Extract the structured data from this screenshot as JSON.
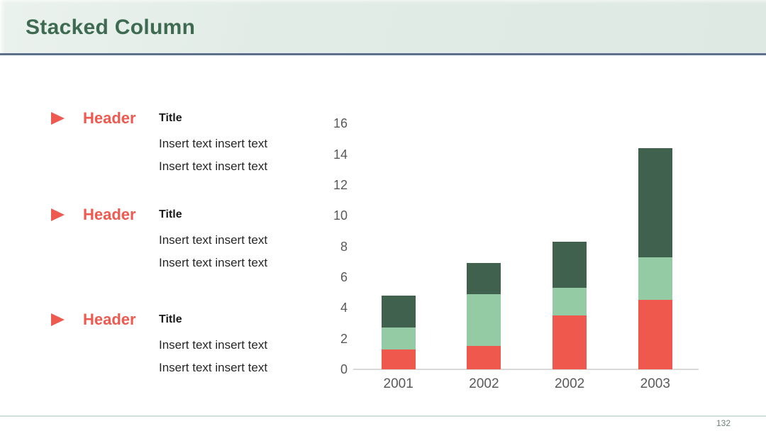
{
  "slide": {
    "title": "Stacked Column"
  },
  "footer": {
    "page_number": "132"
  },
  "colors": {
    "accent_red": "#ee5a4f",
    "band_background": "#e2ece6",
    "band_rule": "#5d7089",
    "title_green": "#3d6a50",
    "footer_rule": "#cfe1da",
    "axis_line": "#d9d9d9",
    "tick_text": "#595959"
  },
  "blocks": [
    {
      "bullet_icon": "triangle-bullet-icon",
      "header": "Header",
      "title": "Title",
      "lines": [
        "Insert text insert text",
        "Insert text insert text"
      ]
    },
    {
      "bullet_icon": "triangle-bullet-icon",
      "header": "Header",
      "title": "Title",
      "lines": [
        "Insert text insert text",
        "Insert text insert text"
      ]
    },
    {
      "bullet_icon": "triangle-bullet-icon",
      "header": "Header",
      "title": "Title",
      "lines": [
        "Insert text insert text",
        "Insert text insert text"
      ]
    }
  ],
  "chart_data": {
    "type": "bar",
    "stacked": true,
    "categories": [
      "2001",
      "2002",
      "2002",
      "2003"
    ],
    "series": [
      {
        "name": "series-1-red",
        "color": "#ee584d",
        "values": [
          1.3,
          1.5,
          3.5,
          4.5
        ]
      },
      {
        "name": "series-2-light-green",
        "color": "#94cba4",
        "values": [
          1.4,
          3.4,
          1.8,
          2.8
        ]
      },
      {
        "name": "series-3-dark-green",
        "color": "#40614e",
        "values": [
          2.1,
          2.0,
          3.0,
          7.1
        ]
      }
    ],
    "totals": [
      4.8,
      6.9,
      8.3,
      14.4
    ],
    "ylim": [
      0,
      16
    ],
    "yticks": [
      0,
      2,
      4,
      6,
      8,
      10,
      12,
      14,
      16
    ],
    "xlabel": "",
    "ylabel": "",
    "grid": false,
    "legend": false
  }
}
